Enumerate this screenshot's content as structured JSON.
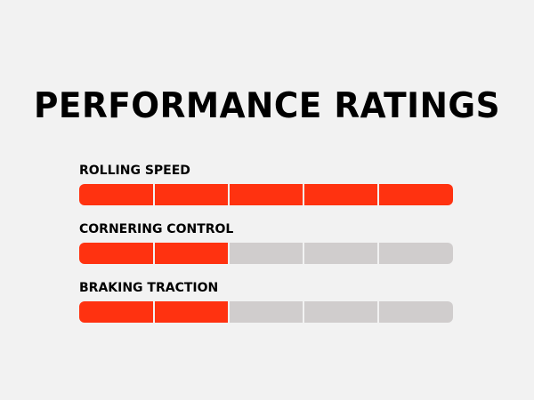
{
  "title": "PERFORMANCE RATINGS",
  "scale": 5,
  "ratings": [
    {
      "label": "ROLLING SPEED",
      "value": 5
    },
    {
      "label": "CORNERING CONTROL",
      "value": 2
    },
    {
      "label": "BRAKING TRACTION",
      "value": 2
    }
  ],
  "fill_color": "#ff3210",
  "empty_color": "#d0cdcd"
}
